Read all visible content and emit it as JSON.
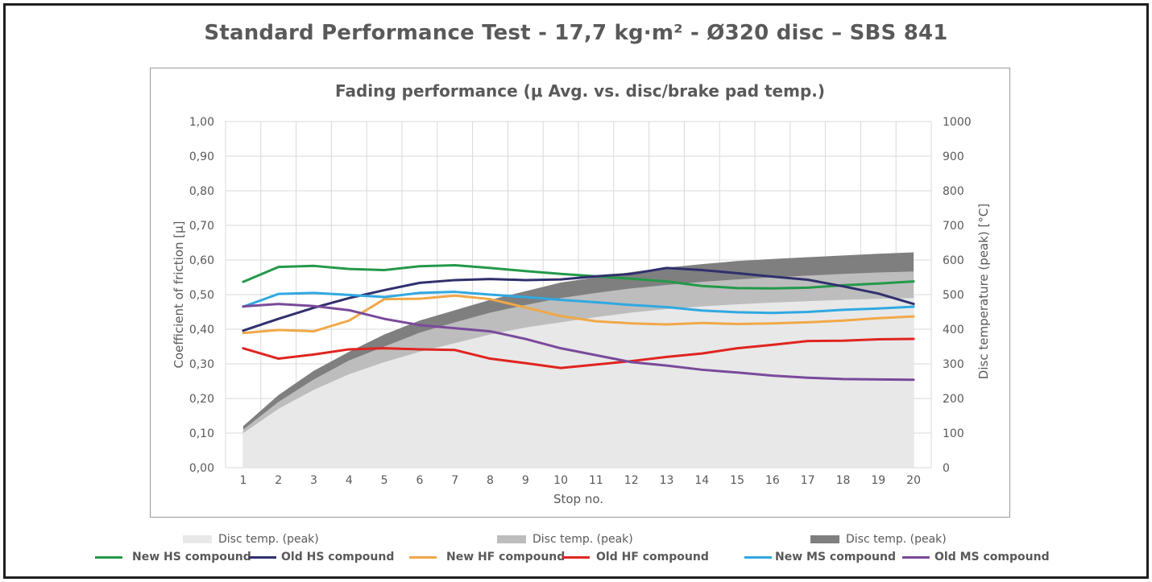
{
  "title": "Standard Performance Test - 17,7 kg·m² - Ø320 disc – SBS 841",
  "legend": {
    "areas": [
      {
        "label": "Disc temp. (peak)",
        "color": "#e8e8e8"
      },
      {
        "label": "Disc temp. (peak)",
        "color": "#bdbdbd"
      },
      {
        "label": "Disc temp. (peak)",
        "color": "#7f7f7f"
      }
    ],
    "lines": [
      {
        "label": "New HS compound",
        "color": "#23994a"
      },
      {
        "label": "Old HS compound",
        "color": "#30306e"
      },
      {
        "label": "New HF compound",
        "color": "#f0a848"
      },
      {
        "label": "Old HF compound",
        "color": "#e0241f"
      },
      {
        "label": "New MS compound",
        "color": "#30a8e0"
      },
      {
        "label": "Old MS compound",
        "color": "#7a4a9a"
      }
    ]
  },
  "chart_data": {
    "type": "line",
    "title": "Fading performance (μ Avg. vs. disc/brake pad temp.)",
    "xlabel": "Stop no.",
    "ylabel": "Coefficient of friction [μ]",
    "y2label": "Disc temperature (peak) [°C]",
    "x": [
      1,
      2,
      3,
      4,
      5,
      6,
      7,
      8,
      9,
      10,
      11,
      12,
      13,
      14,
      15,
      16,
      17,
      18,
      19,
      20
    ],
    "ylim": [
      0,
      1
    ],
    "y_ticks": [
      "0,00",
      "0,10",
      "0,20",
      "0,30",
      "0,40",
      "0,50",
      "0,60",
      "0,70",
      "0,80",
      "0,90",
      "1,00"
    ],
    "y2lim": [
      0,
      1000
    ],
    "y2_ticks": [
      "0",
      "100",
      "200",
      "300",
      "400",
      "500",
      "600",
      "700",
      "800",
      "900",
      "1000"
    ],
    "grid": true,
    "area_series": [
      {
        "name": "Disc temp. (peak)",
        "color": "#e8e8e8",
        "values": [
          100,
          170,
          225,
          270,
          305,
          335,
          360,
          385,
          405,
          420,
          435,
          448,
          458,
          466,
          472,
          477,
          481,
          485,
          488,
          490
        ]
      },
      {
        "name": "Disc temp. (peak)",
        "color": "#bdbdbd",
        "values": [
          110,
          190,
          255,
          310,
          350,
          390,
          420,
          448,
          470,
          490,
          505,
          518,
          528,
          537,
          544,
          550,
          555,
          560,
          564,
          567
        ]
      },
      {
        "name": "Disc temp. (peak)",
        "color": "#7f7f7f",
        "values": [
          120,
          210,
          280,
          335,
          385,
          425,
          455,
          485,
          510,
          535,
          550,
          565,
          578,
          588,
          597,
          603,
          608,
          613,
          618,
          622
        ]
      }
    ],
    "series": [
      {
        "name": "New HS compound",
        "color": "#23994a",
        "values": [
          0.537,
          0.58,
          0.583,
          0.574,
          0.571,
          0.582,
          0.585,
          0.577,
          0.568,
          0.56,
          0.553,
          0.546,
          0.538,
          0.525,
          0.519,
          0.518,
          0.52,
          0.527,
          0.532,
          0.538
        ]
      },
      {
        "name": "Old HS compound",
        "color": "#30306e",
        "values": [
          0.396,
          0.43,
          0.462,
          0.49,
          0.513,
          0.534,
          0.542,
          0.545,
          0.542,
          0.544,
          0.553,
          0.56,
          0.577,
          0.571,
          0.562,
          0.552,
          0.543,
          0.524,
          0.503,
          0.473
        ]
      },
      {
        "name": "New HF compound",
        "color": "#f0a848",
        "values": [
          0.389,
          0.398,
          0.394,
          0.425,
          0.487,
          0.488,
          0.497,
          0.487,
          0.463,
          0.438,
          0.423,
          0.417,
          0.414,
          0.418,
          0.415,
          0.417,
          0.42,
          0.425,
          0.432,
          0.437
        ]
      },
      {
        "name": "Old HF compound",
        "color": "#e0241f",
        "values": [
          0.345,
          0.315,
          0.327,
          0.342,
          0.345,
          0.342,
          0.34,
          0.315,
          0.302,
          0.288,
          0.298,
          0.308,
          0.32,
          0.33,
          0.345,
          0.355,
          0.366,
          0.367,
          0.371,
          0.372
        ]
      },
      {
        "name": "New MS compound",
        "color": "#30a8e0",
        "values": [
          0.465,
          0.502,
          0.505,
          0.499,
          0.493,
          0.505,
          0.508,
          0.5,
          0.493,
          0.485,
          0.478,
          0.47,
          0.464,
          0.454,
          0.449,
          0.447,
          0.45,
          0.456,
          0.46,
          0.465
        ]
      },
      {
        "name": "Old MS compound",
        "color": "#7a4a9a",
        "values": [
          0.466,
          0.473,
          0.467,
          0.455,
          0.43,
          0.412,
          0.403,
          0.394,
          0.372,
          0.345,
          0.325,
          0.305,
          0.295,
          0.283,
          0.275,
          0.266,
          0.26,
          0.256,
          0.255,
          0.254
        ]
      }
    ]
  }
}
